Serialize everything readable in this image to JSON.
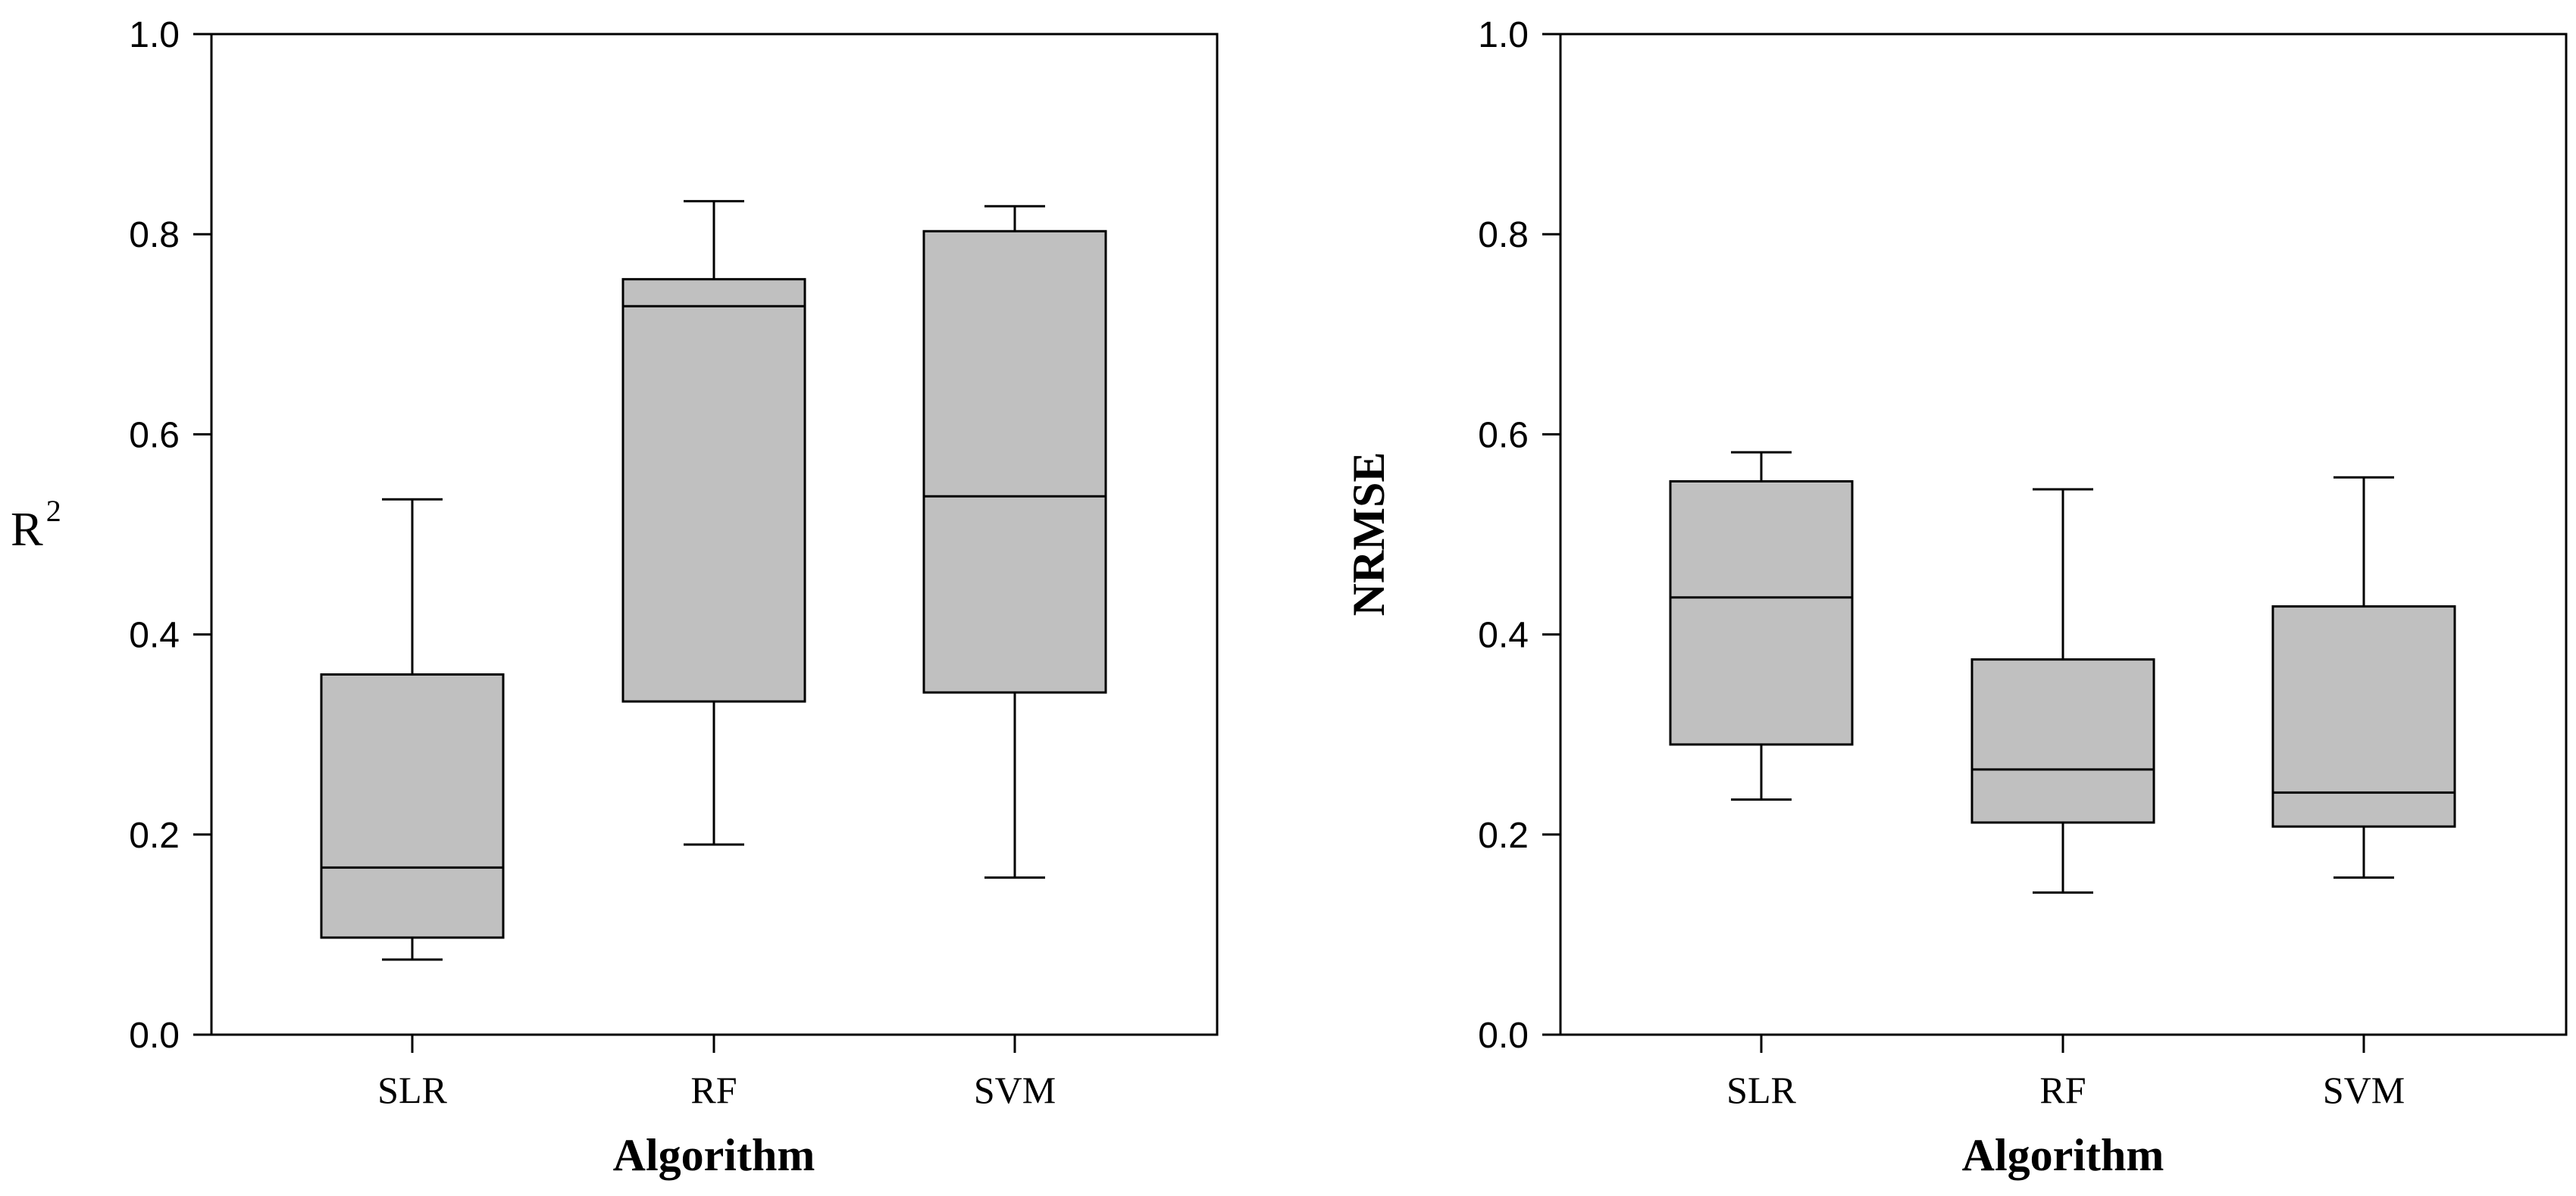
{
  "chart_data": [
    {
      "type": "box",
      "ylabel": "R",
      "ylabel_superscript": "2",
      "xlabel": "Algorithm",
      "ylim": [
        0.0,
        1.0
      ],
      "yticks": [
        "0.0",
        "0.2",
        "0.4",
        "0.6",
        "0.8",
        "1.0"
      ],
      "categories": [
        "SLR",
        "RF",
        "SVM"
      ],
      "boxes": [
        {
          "category": "SLR",
          "whisker_low": 0.075,
          "q1": 0.097,
          "median": 0.167,
          "q3": 0.36,
          "whisker_high": 0.535
        },
        {
          "category": "RF",
          "whisker_low": 0.19,
          "q1": 0.333,
          "median": 0.728,
          "q3": 0.755,
          "whisker_high": 0.833
        },
        {
          "category": "SVM",
          "whisker_low": 0.157,
          "q1": 0.342,
          "median": 0.538,
          "q3": 0.803,
          "whisker_high": 0.828
        }
      ],
      "colors": {
        "box_fill": "#c0c0c0",
        "stroke": "#000000"
      }
    },
    {
      "type": "box",
      "ylabel": "NRMSE",
      "xlabel": "Algorithm",
      "ylim": [
        0.0,
        1.0
      ],
      "yticks": [
        "0.0",
        "0.2",
        "0.4",
        "0.6",
        "0.8",
        "1.0"
      ],
      "categories": [
        "SLR",
        "RF",
        "SVM"
      ],
      "boxes": [
        {
          "category": "SLR",
          "whisker_low": 0.235,
          "q1": 0.29,
          "median": 0.437,
          "q3": 0.553,
          "whisker_high": 0.582
        },
        {
          "category": "RF",
          "whisker_low": 0.142,
          "q1": 0.212,
          "median": 0.265,
          "q3": 0.375,
          "whisker_high": 0.545
        },
        {
          "category": "SVM",
          "whisker_low": 0.157,
          "q1": 0.208,
          "median": 0.242,
          "q3": 0.428,
          "whisker_high": 0.557
        }
      ],
      "colors": {
        "box_fill": "#c0c0c0",
        "stroke": "#000000"
      }
    }
  ]
}
